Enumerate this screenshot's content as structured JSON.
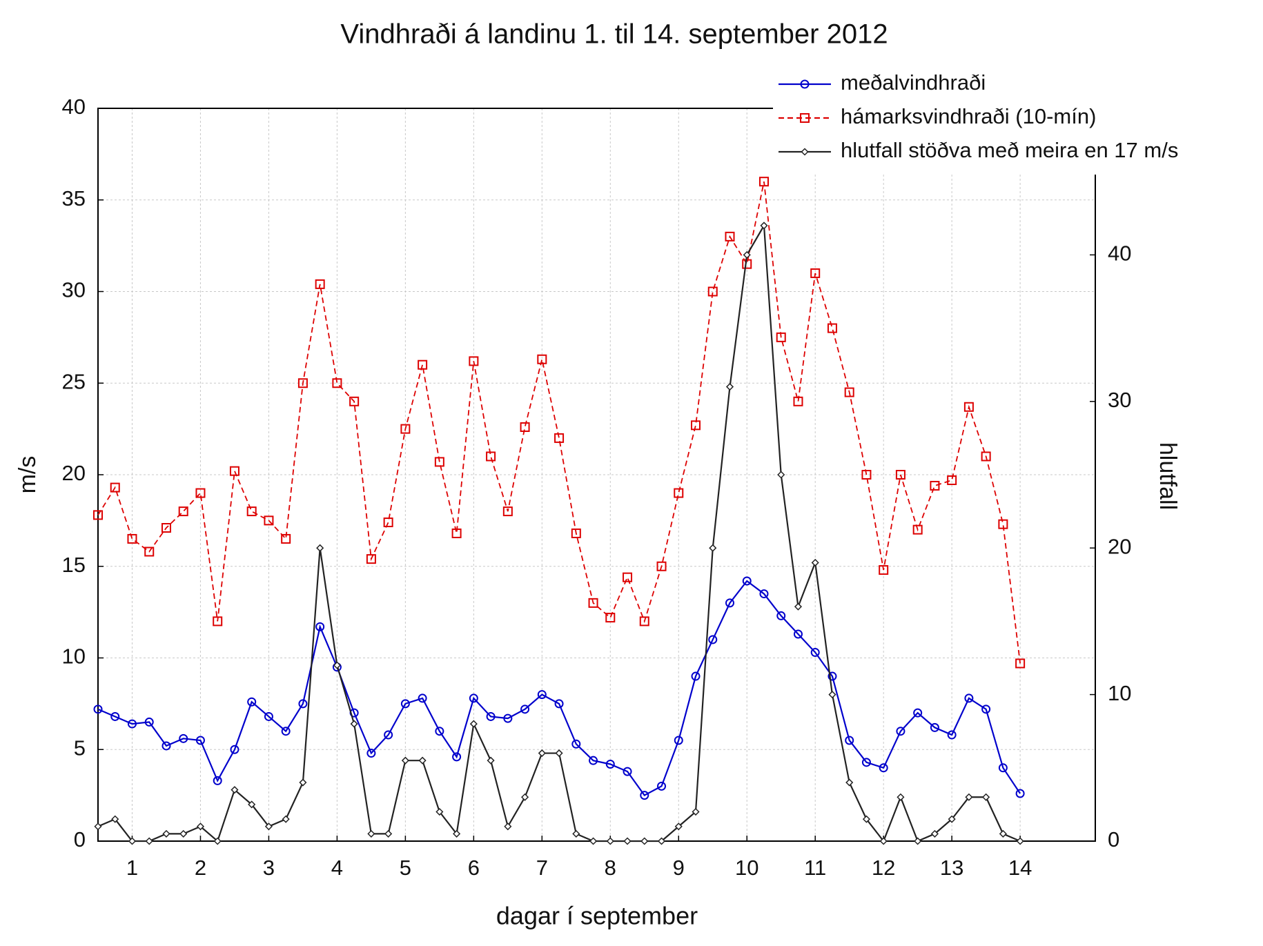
{
  "chart_data": {
    "type": "line",
    "title": "Vindhraði á landinu 1. til 14. september 2012",
    "xlabel": "dagar í september",
    "ylabel": "m/s",
    "y2label": "hlutfall",
    "xlim": [
      0.5,
      15.1
    ],
    "xticks": [
      1,
      2,
      3,
      4,
      5,
      6,
      7,
      8,
      9,
      10,
      11,
      12,
      13,
      14
    ],
    "ylim": [
      0,
      40
    ],
    "yticks": [
      0,
      5,
      10,
      15,
      20,
      25,
      30,
      35,
      40
    ],
    "y2lim": [
      0,
      50
    ],
    "y2ticks": [
      0,
      10,
      20,
      30,
      40
    ],
    "grid": true,
    "legend": "top-right",
    "x": [
      0.5,
      0.75,
      1,
      1.25,
      1.5,
      1.75,
      2,
      2.25,
      2.5,
      2.75,
      3,
      3.25,
      3.5,
      3.75,
      4,
      4.25,
      4.5,
      4.75,
      5,
      5.25,
      5.5,
      5.75,
      6,
      6.25,
      6.5,
      6.75,
      7,
      7.25,
      7.5,
      7.75,
      8,
      8.25,
      8.5,
      8.75,
      9,
      9.25,
      9.5,
      9.75,
      10,
      10.25,
      10.5,
      10.75,
      11,
      11.25,
      11.5,
      11.75,
      12,
      12.25,
      12.5,
      12.75,
      13,
      13.25,
      13.5,
      13.75,
      14
    ],
    "series": [
      {
        "name": "meðalvindhraði",
        "color": "#0000cc",
        "marker": "circle",
        "dashed": false,
        "values": [
          7.2,
          6.8,
          6.4,
          6.5,
          5.2,
          5.6,
          5.5,
          3.3,
          5.0,
          7.6,
          6.8,
          6.0,
          7.5,
          11.7,
          9.5,
          7.0,
          4.8,
          5.8,
          7.5,
          7.8,
          6.0,
          4.6,
          7.8,
          6.8,
          6.7,
          7.2,
          8.0,
          7.5,
          5.3,
          4.4,
          4.2,
          3.8,
          2.5,
          3.0,
          5.5,
          9.0,
          11.0,
          13.0,
          14.2,
          13.5,
          12.3,
          11.3,
          10.3,
          9.0,
          5.5,
          4.3,
          4.0,
          6.0,
          7.0,
          6.2,
          5.8,
          7.8,
          7.2,
          4.0,
          2.6
        ]
      },
      {
        "name": "hámarksvindhraði (10-mín)",
        "color": "#dd0000",
        "marker": "square",
        "dashed": true,
        "values": [
          17.8,
          19.3,
          16.5,
          15.8,
          17.1,
          18.0,
          19.0,
          12.0,
          20.2,
          18.0,
          17.5,
          16.5,
          25.0,
          30.4,
          25.0,
          24.0,
          15.4,
          17.4,
          22.5,
          26.0,
          20.7,
          16.8,
          26.2,
          21.0,
          18.0,
          22.6,
          26.3,
          22.0,
          16.8,
          13.0,
          12.2,
          14.4,
          12.0,
          15.0,
          19.0,
          22.7,
          30.0,
          33.0,
          31.5,
          36.0,
          27.5,
          24.0,
          31.0,
          28.0,
          24.5,
          20.0,
          14.8,
          20.0,
          17.0,
          19.4,
          19.7,
          23.7,
          21.0,
          17.3,
          9.7
        ]
      },
      {
        "name": "hlutfall stöðva með meira en 17 m/s",
        "color": "#222222",
        "marker": "diamond",
        "dashed": false,
        "axis": "y2",
        "values": [
          1,
          1.5,
          0,
          0,
          0.5,
          0.5,
          1,
          0,
          3.5,
          2.5,
          1,
          1.5,
          4,
          20,
          12,
          8,
          0.5,
          0.5,
          5.5,
          5.5,
          2,
          0.5,
          8,
          5.5,
          1,
          3,
          6,
          6,
          0.5,
          0,
          0,
          0,
          0,
          0,
          1,
          2,
          20,
          31,
          40,
          42,
          25,
          16,
          19,
          10,
          4,
          1.5,
          0,
          3,
          0,
          0.5,
          1.5,
          3,
          3,
          0.5,
          0
        ]
      }
    ]
  }
}
